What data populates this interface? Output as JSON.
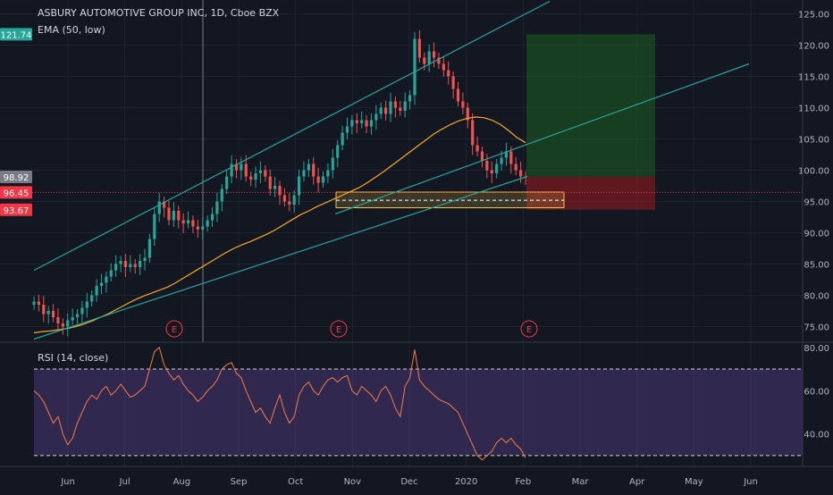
{
  "chart_data": [
    {
      "type": "candlestick",
      "title": "ASBURY AUTOMOTIVE GROUP INC, 1D, Cboe BZX",
      "indicator": "EMA (50, low)",
      "x_ticks": [
        "Jun",
        "Jul",
        "Aug",
        "Sep",
        "Oct",
        "Nov",
        "Dec",
        "2020",
        "Feb",
        "Mar",
        "Apr",
        "May",
        "Jun"
      ],
      "y_ticks": [
        "75.00",
        "80.00",
        "85.00",
        "90.00",
        "95.00",
        "100.00",
        "105.00",
        "110.00",
        "115.00",
        "120.00",
        "125.00"
      ],
      "ylim": [
        72.5,
        126.5
      ],
      "price_labels": [
        {
          "value": "121.74",
          "color": "#26a69a"
        },
        {
          "value": "98.92",
          "color": "#787b86"
        },
        {
          "value": "96.45",
          "color": "#f23645"
        },
        {
          "value": "93.67",
          "color": "#f23645"
        }
      ],
      "earnings_markers": [
        "E",
        "E",
        "E"
      ],
      "close_series": [
        79,
        78.5,
        77,
        77.5,
        76.5,
        75.5,
        75,
        76,
        76.5,
        77,
        78,
        79,
        80,
        81.5,
        82,
        83,
        84,
        85,
        85.5,
        84.5,
        85,
        84.5,
        85.5,
        86,
        89,
        93,
        95,
        94,
        92,
        93.5,
        92,
        91.5,
        92,
        91,
        90.5,
        91,
        92,
        93,
        95,
        97,
        99,
        101,
        100,
        101,
        99,
        98.5,
        99.5,
        100,
        99,
        97,
        97.5,
        96,
        95,
        94.5,
        96,
        99,
        100,
        101,
        99,
        98,
        99,
        100,
        102,
        104,
        106,
        107,
        108,
        107.5,
        108,
        107,
        108,
        109,
        110,
        109,
        111,
        110,
        109.5,
        111,
        112,
        121,
        118,
        117,
        119,
        118,
        117,
        116,
        115,
        113,
        111,
        110,
        108,
        104,
        103,
        101.5,
        100,
        99.5,
        101,
        102,
        103,
        101,
        100,
        99,
        98.92
      ],
      "ema_series": [
        74,
        74.2,
        74.3,
        74.5,
        74.7,
        75,
        75.4,
        75.9,
        76.5,
        77.1,
        77.8,
        78.5,
        79.2,
        79.8,
        80.3,
        80.8,
        81.3,
        82,
        82.8,
        83.6,
        84.4,
        85.2,
        86,
        86.8,
        87.5,
        88.1,
        88.6,
        89.2,
        89.8,
        90.5,
        91.3,
        92.1,
        92.9,
        93.5,
        94.2,
        94.8,
        95.4,
        96,
        96.6,
        97.2,
        98,
        98.9,
        99.8,
        100.8,
        101.8,
        102.8,
        103.8,
        104.8,
        105.8,
        106.6,
        107.3,
        107.9,
        108.3,
        108.5,
        108.4,
        108,
        107.3,
        106.3,
        105.2,
        104.4
      ],
      "trendlines": [
        {
          "name": "upper-channel",
          "from": [
            0,
            84
          ],
          "to": [
            110,
            130
          ]
        },
        {
          "name": "lower-channel",
          "from": [
            0,
            73
          ],
          "to": [
            110,
            102
          ]
        },
        {
          "name": "extended-channel",
          "from": [
            0,
            70
          ],
          "to": [
            150,
            120
          ]
        }
      ],
      "position": {
        "entry": 96.45,
        "target": 121.74,
        "stop": 93.67
      },
      "support_zone": [
        94,
        96.5
      ]
    },
    {
      "type": "line",
      "title": "RSI (14, close)",
      "y_ticks": [
        "40.00",
        "60.00",
        "80.00"
      ],
      "ylim": [
        25,
        82
      ],
      "overbought": 70,
      "oversold": 30,
      "values": [
        60,
        58,
        55,
        50,
        45,
        48,
        40,
        35,
        38,
        45,
        50,
        55,
        58,
        56,
        60,
        62,
        58,
        60,
        63,
        60,
        57,
        58,
        60,
        62,
        70,
        78,
        80,
        72,
        68,
        65,
        67,
        63,
        60,
        58,
        55,
        57,
        60,
        62,
        65,
        70,
        72,
        73,
        68,
        66,
        60,
        55,
        50,
        52,
        48,
        45,
        52,
        58,
        50,
        45,
        48,
        58,
        62,
        64,
        60,
        58,
        62,
        65,
        66,
        64,
        66,
        67,
        60,
        58,
        62,
        60,
        58,
        55,
        60,
        62,
        58,
        52,
        48,
        62,
        66,
        79,
        65,
        62,
        60,
        58,
        56,
        55,
        54,
        52,
        50,
        45,
        40,
        35,
        30,
        28,
        30,
        32,
        36,
        38,
        36,
        38,
        35,
        33,
        29
      ]
    }
  ]
}
